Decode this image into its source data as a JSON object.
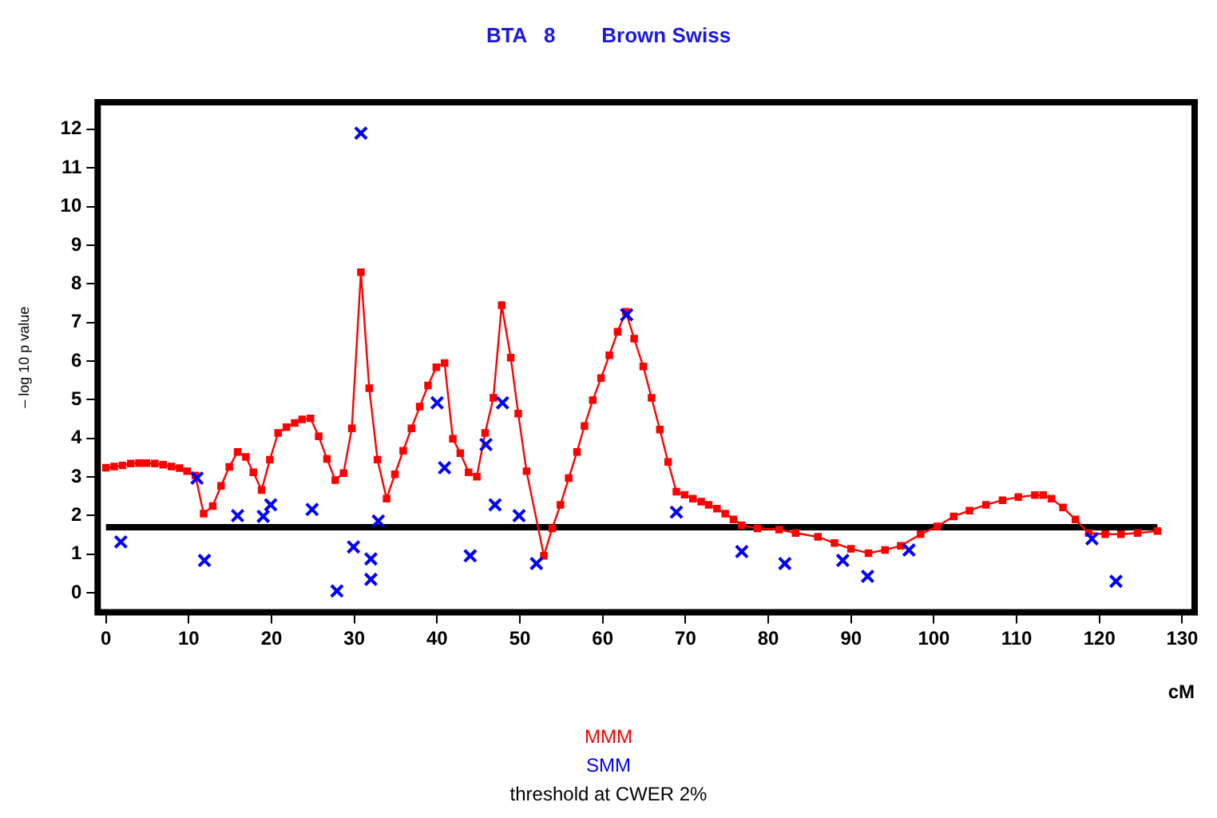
{
  "chart_data": {
    "type": "line",
    "title": "BTA   8        Brown Swiss",
    "xlabel": "cM",
    "ylabel": "– log 10 p value",
    "xlim": [
      -1,
      131.5
    ],
    "xticks": [
      0,
      10,
      20,
      30,
      40,
      50,
      60,
      70,
      80,
      90,
      100,
      110,
      120,
      130
    ],
    "ylim": [
      -0.5,
      12.7
    ],
    "yticks": [
      0,
      1,
      2,
      3,
      4,
      5,
      6,
      7,
      8,
      9,
      10,
      11,
      12
    ],
    "grid": false,
    "legend": "bottom",
    "series": [
      {
        "name": "MMM",
        "color": "#ff0000",
        "marker": "square",
        "x": [
          0,
          1,
          2,
          3,
          4,
          4.9,
          5.9,
          6.9,
          7.9,
          8.9,
          9.8,
          10.8,
          11.8,
          12.9,
          13.9,
          14.9,
          15.9,
          16.9,
          17.8,
          18.8,
          19.8,
          20.8,
          21.8,
          22.8,
          23.7,
          24.7,
          25.7,
          26.7,
          27.7,
          28.7,
          29.7,
          30.8,
          31.8,
          32.8,
          33.9,
          34.9,
          35.9,
          36.9,
          37.9,
          38.9,
          39.9,
          40.9,
          41.9,
          42.8,
          43.8,
          44.8,
          45.8,
          46.8,
          47.8,
          48.9,
          49.8,
          50.8,
          52.9,
          53.9,
          54.9,
          55.9,
          56.9,
          57.8,
          58.8,
          59.8,
          60.8,
          61.8,
          62.8,
          63.8,
          64.9,
          65.9,
          66.9,
          67.9,
          68.9,
          69.9,
          70.9,
          71.9,
          72.8,
          73.8,
          74.8,
          75.8,
          76.8,
          78.7,
          81.3,
          83.3,
          86,
          88,
          90,
          92.1,
          94.1,
          96,
          98.4,
          100.4,
          102.4,
          104.3,
          106.3,
          108.3,
          110.2,
          112.2,
          113.2,
          114.2,
          115.6,
          117.1,
          118.7,
          120.7,
          122.6,
          124.6,
          127
        ],
        "values": [
          3.24,
          3.27,
          3.3,
          3.35,
          3.36,
          3.36,
          3.35,
          3.32,
          3.27,
          3.23,
          3.15,
          3.04,
          2.05,
          2.25,
          2.77,
          3.26,
          3.65,
          3.52,
          3.12,
          2.66,
          3.45,
          4.14,
          4.29,
          4.4,
          4.49,
          4.52,
          4.05,
          3.47,
          2.92,
          3.1,
          4.26,
          8.3,
          5.3,
          3.45,
          2.44,
          3.07,
          3.68,
          4.26,
          4.82,
          5.37,
          5.84,
          5.95,
          3.99,
          3.62,
          3.12,
          3.01,
          4.14,
          5.05,
          7.45,
          6.09,
          4.64,
          3.15,
          0.96,
          1.67,
          2.28,
          2.97,
          3.65,
          4.32,
          4.99,
          5.56,
          6.15,
          6.76,
          7.28,
          6.58,
          5.86,
          5.05,
          4.23,
          3.39,
          2.62,
          2.54,
          2.44,
          2.36,
          2.28,
          2.18,
          2.05,
          1.9,
          1.75,
          1.67,
          1.64,
          1.55,
          1.45,
          1.29,
          1.14,
          1.03,
          1.11,
          1.22,
          1.52,
          1.72,
          1.98,
          2.13,
          2.28,
          2.4,
          2.48,
          2.53,
          2.53,
          2.44,
          2.21,
          1.9,
          1.55,
          1.52,
          1.52,
          1.55,
          1.6
        ]
      },
      {
        "name": "SMM",
        "type": "scatter",
        "color": "#0000ff",
        "marker": "cross",
        "x": [
          1.8,
          11,
          11.9,
          15.9,
          19,
          19.9,
          24.9,
          27.9,
          29.9,
          30.8,
          32,
          32,
          32.9,
          40,
          40.9,
          44,
          45.9,
          47,
          47.9,
          49.9,
          52,
          62.9,
          68.9,
          76.8,
          82,
          89,
          92,
          97,
          119.1,
          122
        ],
        "values": [
          1.32,
          2.97,
          0.84,
          2.0,
          1.98,
          2.28,
          2.16,
          0.05,
          1.19,
          11.9,
          0.88,
          0.35,
          1.86,
          4.92,
          3.24,
          0.96,
          3.84,
          2.28,
          4.92,
          2.0,
          0.76,
          7.2,
          2.09,
          1.07,
          0.76,
          0.84,
          0.43,
          1.11,
          1.4,
          0.3
        ]
      },
      {
        "name": "threshold at CWER 2%",
        "type": "line",
        "color": "#000000",
        "marker": "none",
        "x": [
          0,
          127
        ],
        "values": [
          1.7,
          1.7
        ]
      }
    ]
  }
}
